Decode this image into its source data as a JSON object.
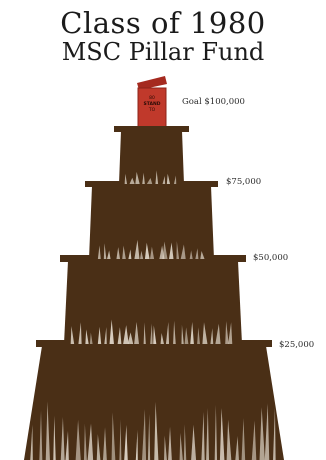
{
  "title": {
    "line1": "Class of 1980",
    "line2": "MSC Pillar Fund"
  },
  "goals": [
    {
      "label": "Goal $100,000",
      "amount": 100000
    },
    {
      "label": "$75,000",
      "amount": 75000
    },
    {
      "label": "$50,000",
      "amount": 50000
    },
    {
      "label": "$25,000",
      "amount": 25000
    }
  ],
  "top_box": {
    "line1": "80",
    "line2": "STAND",
    "line3": "TO"
  },
  "colors": {
    "tower_fill": "#4a2f16",
    "tower_dark": "#3b240f",
    "box_fill": "#c0392b",
    "streak": "#e8e0d3"
  }
}
